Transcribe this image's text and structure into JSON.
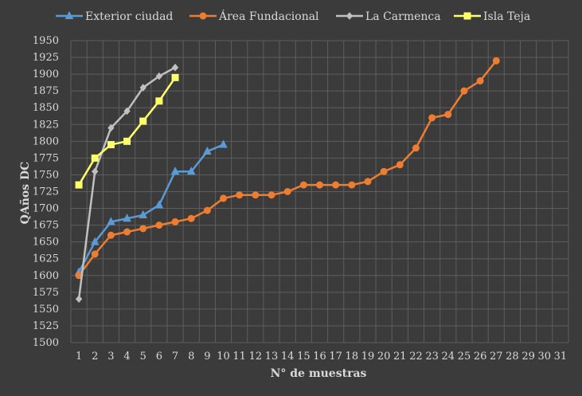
{
  "chart_data": {
    "type": "line",
    "xlabel": "N° de muestras",
    "ylabel": "QAños DC",
    "ylim": [
      1500,
      1950
    ],
    "y_step": 25,
    "categories": [
      "1",
      "2",
      "3",
      "4",
      "5",
      "6",
      "7",
      "8",
      "9",
      "10",
      "11",
      "12",
      "13",
      "14",
      "15",
      "16",
      "17",
      "18",
      "19",
      "20",
      "21",
      "22",
      "23",
      "24",
      "25",
      "26",
      "27",
      "28",
      "29",
      "30",
      "31"
    ],
    "grid": true,
    "legend_position": "top",
    "series": [
      {
        "name": "Exterior ciudad",
        "color": "#5b9bd5",
        "marker": "triangle",
        "x": [
          1,
          2,
          3,
          4,
          5,
          6,
          7,
          8,
          9,
          10
        ],
        "values": [
          1605,
          1650,
          1680,
          1685,
          1690,
          1705,
          1755,
          1755,
          1785,
          1795
        ]
      },
      {
        "name": "Área Fundacional",
        "color": "#ed7d31",
        "marker": "circle",
        "x": [
          1,
          2,
          3,
          4,
          5,
          6,
          7,
          8,
          9,
          10,
          11,
          12,
          13,
          14,
          15,
          16,
          17,
          18,
          19,
          20,
          21,
          22,
          23,
          24,
          25,
          26,
          27
        ],
        "values": [
          1600,
          1632,
          1660,
          1665,
          1670,
          1675,
          1680,
          1685,
          1697,
          1715,
          1720,
          1720,
          1720,
          1725,
          1735,
          1735,
          1735,
          1735,
          1740,
          1755,
          1765,
          1790,
          1835,
          1840,
          1875,
          1890,
          1920
        ]
      },
      {
        "name": "La Carmenca",
        "color": "#c0c0c0",
        "marker": "diamond",
        "x": [
          1,
          2,
          3,
          4,
          5,
          6,
          7
        ],
        "values": [
          1565,
          1755,
          1820,
          1845,
          1880,
          1897,
          1910
        ]
      },
      {
        "name": "Isla Teja",
        "color": "#ffff66",
        "marker": "square",
        "x": [
          1,
          2,
          3,
          4,
          5,
          6,
          7
        ],
        "values": [
          1735,
          1775,
          1795,
          1800,
          1830,
          1860,
          1895
        ]
      }
    ]
  }
}
